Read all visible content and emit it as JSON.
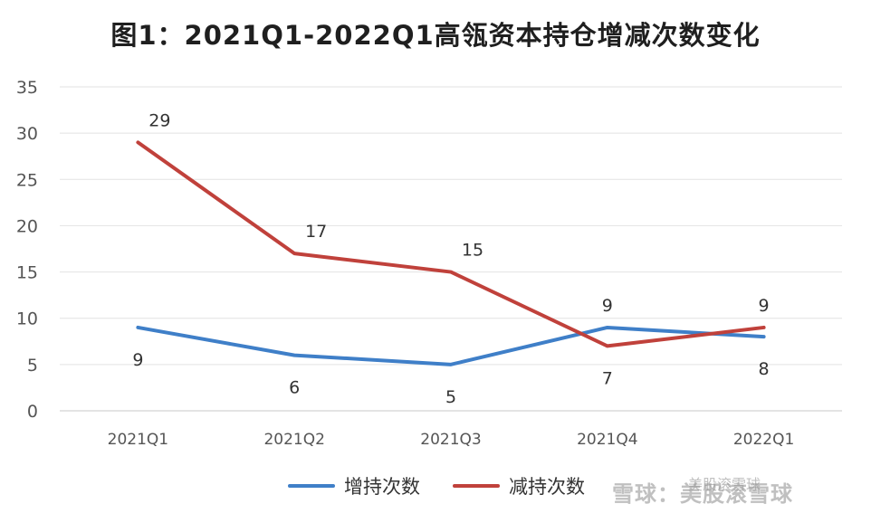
{
  "chart_data": {
    "type": "line",
    "title": "图1：2021Q1-2022Q1高瓴资本持仓增减次数变化",
    "categories": [
      "2021Q1",
      "2021Q2",
      "2021Q3",
      "2021Q4",
      "2022Q1"
    ],
    "ylim": [
      0,
      35
    ],
    "yticks": [
      0,
      5,
      10,
      15,
      20,
      25,
      30,
      35
    ],
    "grid": true,
    "legend_position": "bottom",
    "series": [
      {
        "name": "增持次数",
        "color": "#3f7fc8",
        "values": [
          9,
          6,
          5,
          9,
          8
        ]
      },
      {
        "name": "减持次数",
        "color": "#c0413b",
        "values": [
          29,
          17,
          15,
          7,
          9
        ]
      }
    ]
  },
  "watermark": {
    "main": "雪球：美股滚雪球",
    "top": "美股滚雪球"
  }
}
